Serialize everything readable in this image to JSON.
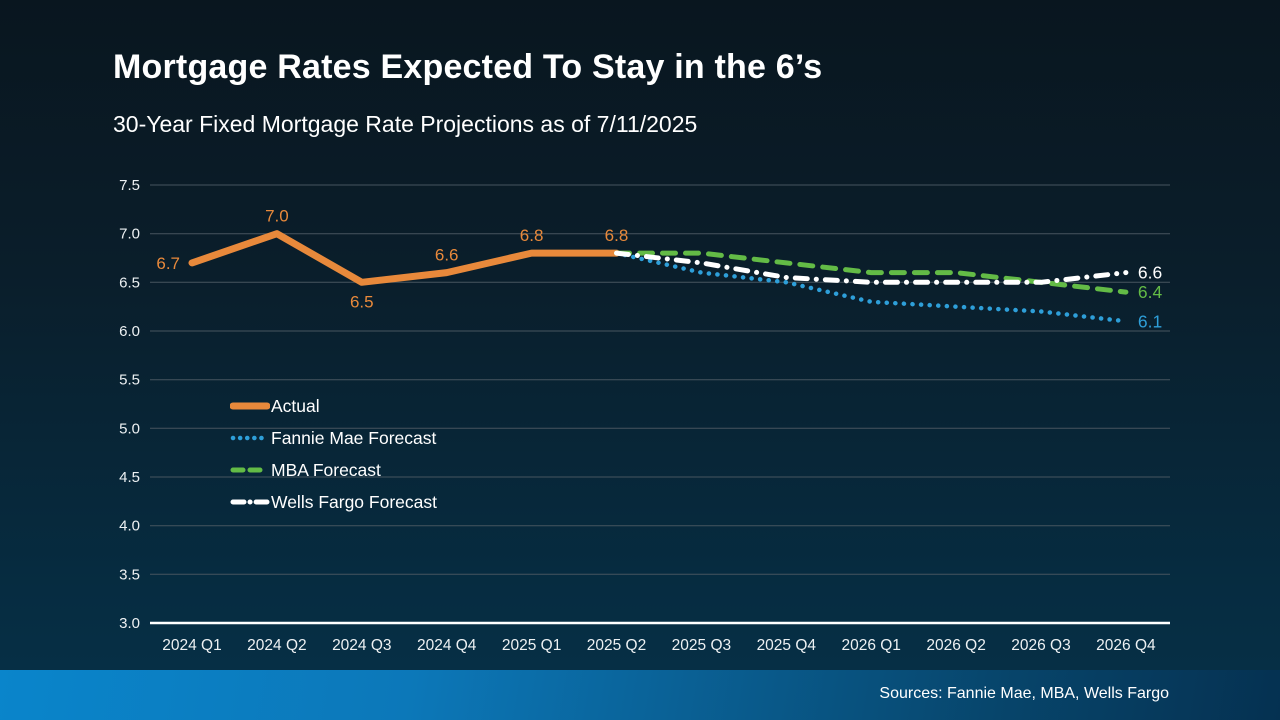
{
  "header": {
    "title": "Mortgage Rates Expected To Stay in the 6’s",
    "subtitle": "30-Year Fixed Mortgage Rate Projections as of 7/11/2025"
  },
  "footer": {
    "sources": "Sources: Fannie Mae, MBA, Wells Fargo"
  },
  "colors": {
    "background_top": "#09161f",
    "background_bottom": "#063148",
    "gridline": "#47555f",
    "axis_line": "#ffffff",
    "footer_left": "#0a85cb",
    "footer_right": "#053151"
  },
  "chart_data": {
    "type": "line",
    "title": "30-Year Fixed Mortgage Rate Projections as of 7/11/2025",
    "xlabel": "",
    "ylabel": "",
    "grid": true,
    "legend_position": "inside-left",
    "categories": [
      "2024 Q1",
      "2024 Q2",
      "2024 Q3",
      "2024 Q4",
      "2025 Q1",
      "2025 Q2",
      "2025 Q3",
      "2025 Q4",
      "2026 Q1",
      "2026 Q2",
      "2026 Q3",
      "2026 Q4"
    ],
    "y_axis": {
      "min": 3.0,
      "max": 7.5,
      "step": 0.5
    },
    "y_ticks": [
      "7.5",
      "7.0",
      "6.5",
      "6.0",
      "5.5",
      "5.0",
      "4.5",
      "4.0",
      "3.5",
      "3.0"
    ],
    "series": [
      {
        "name": "Actual",
        "key": "actual",
        "color": "#E8893B",
        "style": "solid",
        "start_index": 0,
        "values": [
          6.7,
          7.0,
          6.5,
          6.6,
          6.8,
          6.8
        ],
        "point_labels": [
          "6.7",
          "7.0",
          "6.5",
          "6.6",
          "6.8",
          "6.8"
        ],
        "label_placement": [
          "left",
          "top",
          "bottom",
          "top",
          "top",
          "top"
        ]
      },
      {
        "name": "Fannie Mae Forecast",
        "key": "fannie-mae",
        "color": "#2E9FD9",
        "style": "dotted",
        "start_index": 5,
        "values": [
          6.8,
          6.6,
          6.5,
          6.3,
          6.25,
          6.2,
          6.1
        ],
        "end_label": "6.1"
      },
      {
        "name": "MBA Forecast",
        "key": "mba",
        "color": "#63BB46",
        "style": "dashed",
        "start_index": 5,
        "values": [
          6.8,
          6.8,
          6.7,
          6.6,
          6.6,
          6.5,
          6.4
        ],
        "end_label": "6.4"
      },
      {
        "name": "Wells Fargo Forecast",
        "key": "wells-fargo",
        "color": "#FFFFFF",
        "style": "dashdot",
        "start_index": 5,
        "values": [
          6.8,
          6.7,
          6.55,
          6.5,
          6.5,
          6.5,
          6.6
        ],
        "end_label": "6.6"
      }
    ]
  }
}
